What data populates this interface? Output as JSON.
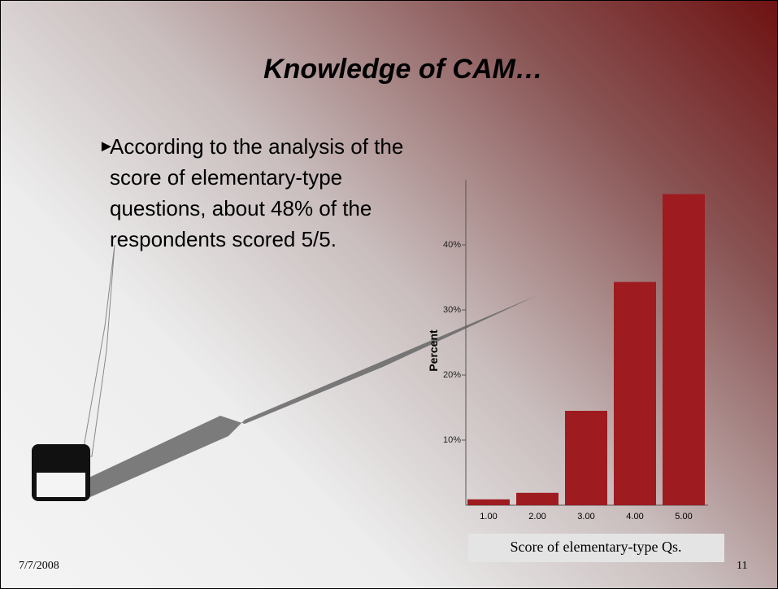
{
  "slide": {
    "title": "Knowledge of  CAM…",
    "bullet": "According to the analysis of the score of elementary-type questions, about 48% of the respondents scored 5/5.",
    "date": "7/7/2008",
    "page": "11"
  },
  "chart_data": {
    "type": "bar",
    "categories": [
      "1.00",
      "2.00",
      "3.00",
      "4.00",
      "5.00"
    ],
    "values": [
      0.9,
      1.9,
      14.5,
      34.3,
      47.8
    ],
    "color": "#9e1b20",
    "ylabel": "Percent",
    "xlabel": "Score of elementary-type Qs.",
    "ylim": [
      0,
      50
    ],
    "yticks": [
      {
        "value": 10,
        "label": "10%"
      },
      {
        "value": 20,
        "label": "20%"
      },
      {
        "value": 30,
        "label": "30%"
      },
      {
        "value": 40,
        "label": "40%"
      }
    ]
  }
}
